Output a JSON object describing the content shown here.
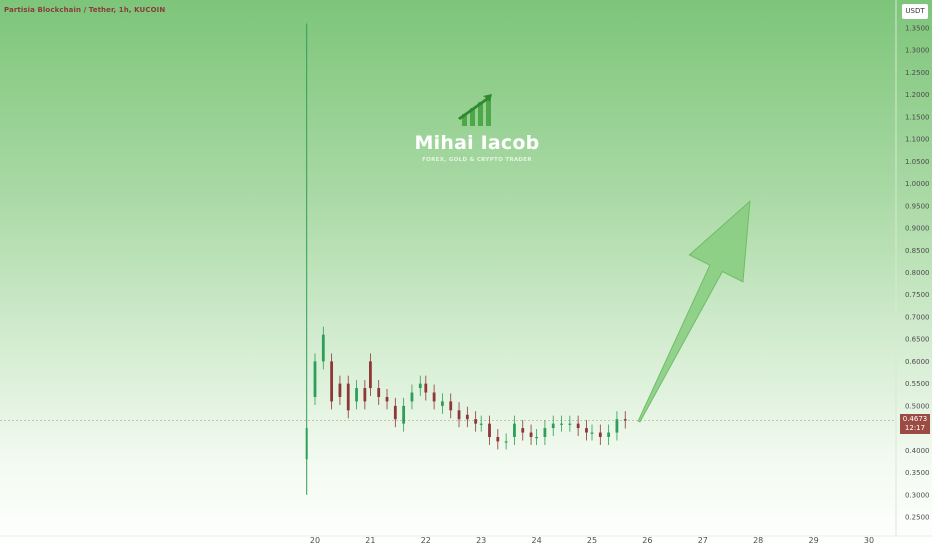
{
  "header": {
    "title": "Partisia Blockchain / Tether, 1h, KUCOIN"
  },
  "price_axis": {
    "currency": "USDT"
  },
  "last_price": {
    "value": "0.4673",
    "countdown": "12:17"
  },
  "watermark": {
    "name": "Mihai Iacob",
    "tagline": "FOREX, GOLD & CRYPTO TRADER",
    "icon": "rising-bars-arrow-icon"
  },
  "colors": {
    "up": "#2e9e58",
    "down": "#8f3636",
    "arrow": "#86cc7e",
    "price_label": "#9b4b42"
  },
  "chart_data": {
    "type": "candlestick",
    "title": "Partisia Blockchain / Tether, 1h, KUCOIN",
    "y_axis": {
      "unit": "USDT",
      "ticks": [
        "1.3500",
        "1.3000",
        "1.2500",
        "1.2000",
        "1.1500",
        "1.1000",
        "1.0500",
        "1.0000",
        "0.9500",
        "0.9000",
        "0.8500",
        "0.8000",
        "0.7500",
        "0.7000",
        "0.6500",
        "0.6000",
        "0.5500",
        "0.5000",
        "0.4500",
        "0.4000",
        "0.3500",
        "0.3000",
        "0.2500"
      ],
      "range": [
        0.25,
        1.35
      ],
      "position": "right"
    },
    "x_axis": {
      "ticks": [
        "20",
        "21",
        "22",
        "23",
        "24",
        "25",
        "26",
        "27",
        "28",
        "29",
        "30"
      ],
      "range": [
        19.3,
        30.2
      ]
    },
    "last_price": 0.4673,
    "grid": false,
    "series": [
      {
        "name": "price",
        "points": [
          [
            20.0,
            0.52,
            0.6
          ],
          [
            20.15,
            0.6,
            0.66
          ],
          [
            20.3,
            0.6,
            0.51
          ],
          [
            20.45,
            0.55,
            0.52
          ],
          [
            20.6,
            0.55,
            0.49
          ],
          [
            20.75,
            0.51,
            0.54
          ],
          [
            20.9,
            0.54,
            0.51
          ],
          [
            21.0,
            0.6,
            0.54
          ],
          [
            21.15,
            0.54,
            0.52
          ],
          [
            21.3,
            0.52,
            0.51
          ],
          [
            21.45,
            0.5,
            0.47
          ],
          [
            21.6,
            0.46,
            0.5
          ],
          [
            21.75,
            0.51,
            0.53
          ],
          [
            21.9,
            0.54,
            0.55
          ],
          [
            22.0,
            0.55,
            0.53
          ],
          [
            22.15,
            0.53,
            0.51
          ],
          [
            22.3,
            0.5,
            0.51
          ],
          [
            22.45,
            0.51,
            0.49
          ],
          [
            22.6,
            0.49,
            0.47
          ],
          [
            22.75,
            0.48,
            0.47
          ],
          [
            22.9,
            0.47,
            0.46
          ],
          [
            23.0,
            0.46,
            0.46
          ],
          [
            23.15,
            0.46,
            0.43
          ],
          [
            23.3,
            0.43,
            0.42
          ],
          [
            23.45,
            0.42,
            0.42
          ],
          [
            23.6,
            0.43,
            0.46
          ],
          [
            23.75,
            0.45,
            0.44
          ],
          [
            23.9,
            0.44,
            0.43
          ],
          [
            24.0,
            0.43,
            0.43
          ],
          [
            24.15,
            0.43,
            0.45
          ],
          [
            24.3,
            0.45,
            0.46
          ],
          [
            24.45,
            0.46,
            0.46
          ],
          [
            24.6,
            0.46,
            0.46
          ],
          [
            24.75,
            0.46,
            0.45
          ],
          [
            24.9,
            0.45,
            0.44
          ],
          [
            25.0,
            0.44,
            0.44
          ],
          [
            25.15,
            0.44,
            0.43
          ],
          [
            25.3,
            0.43,
            0.44
          ],
          [
            25.45,
            0.44,
            0.47
          ],
          [
            25.6,
            0.47,
            0.467
          ]
        ]
      }
    ],
    "spike": {
      "x": 19.85,
      "low": 0.3,
      "high": 1.36
    },
    "projection": {
      "from": [
        25.85,
        0.465
      ],
      "to": [
        27.85,
        0.96
      ]
    }
  }
}
